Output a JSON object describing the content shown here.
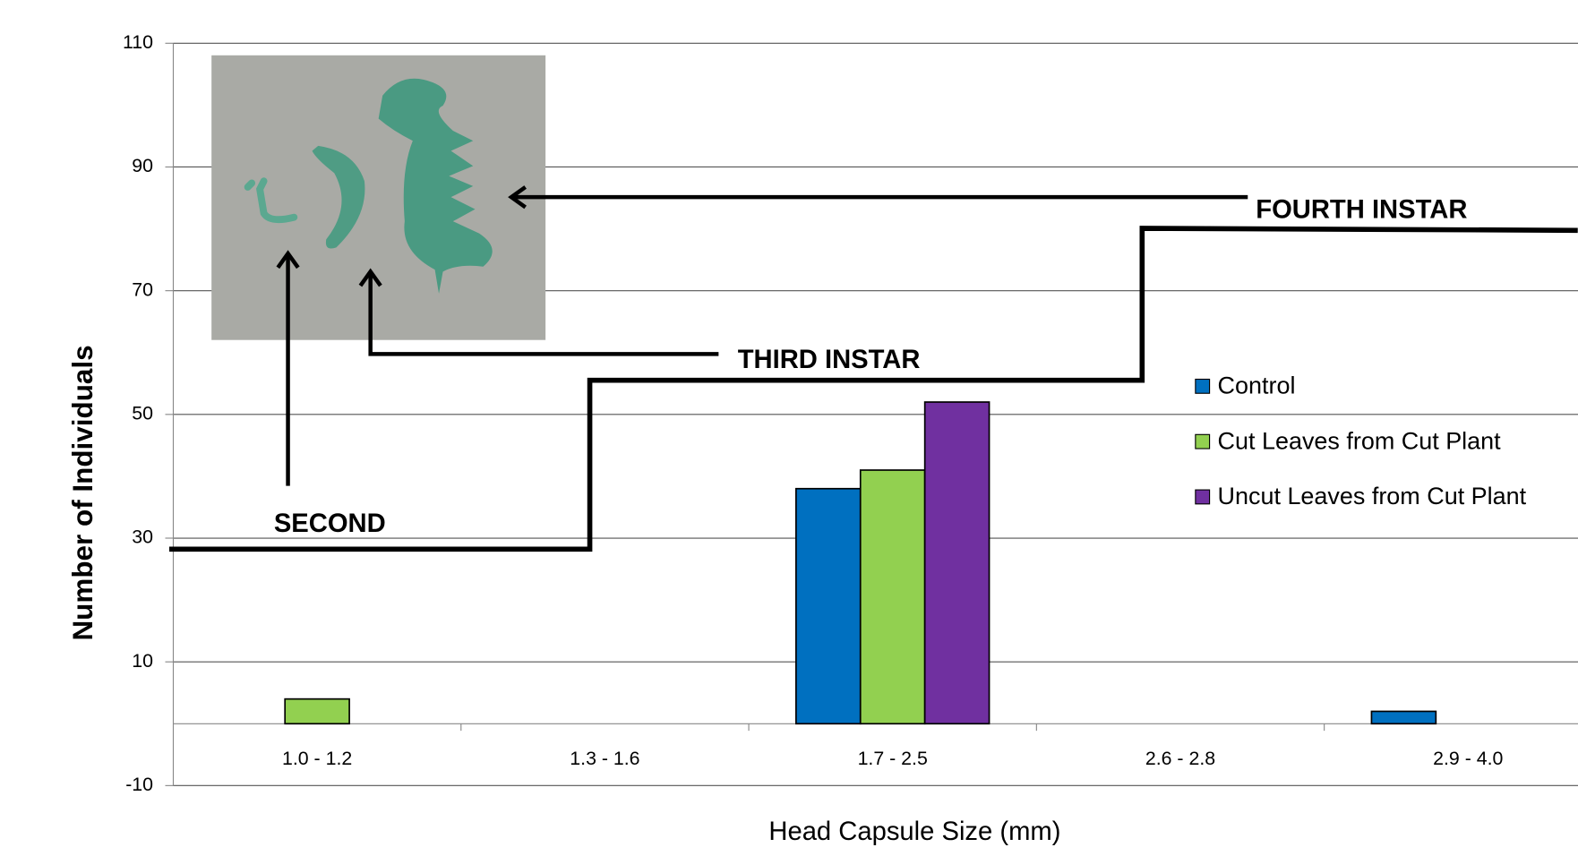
{
  "chart_data": {
    "type": "bar",
    "x_label": "Head Capsule Size (mm)",
    "y_label": "Number of Individuals",
    "categories": [
      "1.0 - 1.2",
      "1.3 - 1.6",
      "1.7 - 2.5",
      "2.6 - 2.8",
      "2.9 - 4.0"
    ],
    "series": [
      {
        "name": "Control",
        "color": "#0070c0",
        "values": [
          0,
          0,
          38,
          0,
          2
        ]
      },
      {
        "name": "Cut Leaves from Cut Plant",
        "color": "#92d050",
        "values": [
          4,
          0,
          41,
          0,
          0
        ]
      },
      {
        "name": "Uncut Leaves from Cut Plant",
        "color": "#7030a0",
        "values": [
          0,
          0,
          52,
          0,
          0
        ]
      }
    ],
    "ylim": [
      -10,
      110
    ],
    "yticks": [
      -10,
      10,
      30,
      50,
      70,
      90,
      110
    ],
    "grid": true,
    "legend": "right",
    "annotations": [
      "SECOND",
      "THIRD INSTAR",
      "FOURTH INSTAR"
    ]
  }
}
